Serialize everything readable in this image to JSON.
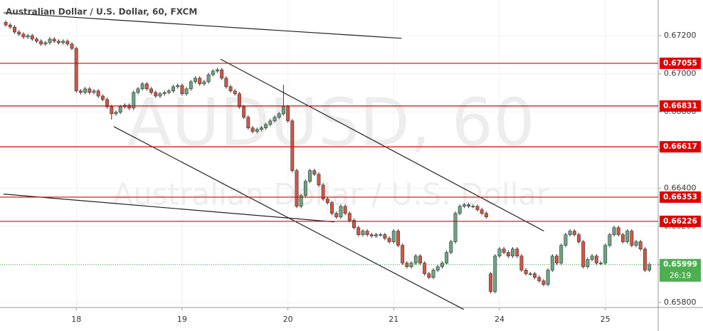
{
  "chart_data": {
    "type": "candlestick",
    "title": "Australian Dollar / U.S. Dollar, 60, FXCM",
    "watermark": "AUDUSD, 60",
    "watermark_subtitle": "Australian Dollar / U.S. Dollar",
    "up_color": "#6ba583",
    "down_color": "#d75442",
    "open": [
      0.6727,
      0.67256,
      0.67245,
      0.67219,
      0.67208,
      0.67193,
      0.672,
      0.67182,
      0.67171,
      0.67156,
      0.67163,
      0.67182,
      0.67171,
      0.67163,
      0.67171,
      0.67156,
      0.67133,
      0.6691,
      0.66902,
      0.66921,
      0.66902,
      0.6691,
      0.66883,
      0.66865,
      0.66827,
      0.6679,
      0.66798,
      0.66827,
      0.66835,
      0.6682,
      0.66902,
      0.66921,
      0.66947,
      0.66921,
      0.66902,
      0.66883,
      0.66895,
      0.66902,
      0.6691,
      0.66932,
      0.66939,
      0.66895,
      0.66921,
      0.66958,
      0.66977,
      0.66947,
      0.66958,
      0.66995,
      0.67014,
      0.67021,
      0.66977,
      0.66932,
      0.6691,
      0.66895,
      0.66827,
      0.66772,
      0.66716,
      0.66697,
      0.66708,
      0.66716,
      0.66734,
      0.66753,
      0.66772,
      0.6679,
      0.66827,
      0.66753,
      0.66492,
      0.66305,
      0.66361,
      0.66436,
      0.66492,
      0.66473,
      0.66417,
      0.66343,
      0.66324,
      0.66268,
      0.66249,
      0.66305,
      0.66268,
      0.66231,
      0.66193,
      0.66156,
      0.66175,
      0.66156,
      0.66149,
      0.66156,
      0.66156,
      0.66137,
      0.66119,
      0.66175,
      0.661,
      0.66007,
      0.65988,
      0.66007,
      0.66044,
      0.66007,
      0.65951,
      0.65932,
      0.6597,
      0.65988,
      0.66007,
      0.66063,
      0.66119,
      0.66268,
      0.66305,
      0.66313,
      0.66305,
      0.66305,
      0.66287,
      0.66268,
      0.65951,
      0.65858,
      0.66044,
      0.66081,
      0.66063,
      0.66044,
      0.66081,
      0.66044,
      0.6597,
      0.65951,
      0.65951,
      0.65932,
      0.65914,
      0.65895,
      0.6597,
      0.66044,
      0.66007,
      0.661,
      0.66156,
      0.66175,
      0.66156,
      0.66119,
      0.65988,
      0.66026,
      0.66044,
      0.66007,
      0.66007,
      0.661,
      0.66156,
      0.66193,
      0.66156,
      0.66119,
      0.66175,
      0.661,
      0.66119,
      0.66081,
      0.6597
    ],
    "high": [
      0.6728,
      0.67266,
      0.67255,
      0.67229,
      0.67218,
      0.6721,
      0.6721,
      0.67192,
      0.67181,
      0.67173,
      0.67192,
      0.67192,
      0.67181,
      0.67181,
      0.67181,
      0.67166,
      0.67143,
      0.6692,
      0.66931,
      0.66931,
      0.6692,
      0.6692,
      0.66893,
      0.66875,
      0.66837,
      0.66808,
      0.66837,
      0.66845,
      0.66845,
      0.66912,
      0.66931,
      0.66957,
      0.66957,
      0.66931,
      0.66912,
      0.66905,
      0.66912,
      0.6692,
      0.66942,
      0.66949,
      0.66949,
      0.66931,
      0.66968,
      0.66987,
      0.66987,
      0.66968,
      0.67005,
      0.67024,
      0.67031,
      0.67031,
      0.66987,
      0.66942,
      0.6692,
      0.66905,
      0.66837,
      0.66782,
      0.66726,
      0.66718,
      0.66726,
      0.66744,
      0.66763,
      0.66782,
      0.668,
      0.66942,
      0.66837,
      0.66763,
      0.66502,
      0.66371,
      0.66446,
      0.66502,
      0.66502,
      0.66483,
      0.66427,
      0.66353,
      0.66334,
      0.66278,
      0.66315,
      0.66315,
      0.66278,
      0.66241,
      0.66203,
      0.66185,
      0.66185,
      0.66166,
      0.66166,
      0.66166,
      0.66166,
      0.66147,
      0.66185,
      0.66185,
      0.6611,
      0.66017,
      0.66017,
      0.66054,
      0.66054,
      0.66017,
      0.65961,
      0.6598,
      0.65998,
      0.66017,
      0.66073,
      0.66129,
      0.66278,
      0.66315,
      0.66323,
      0.66323,
      0.66315,
      0.66315,
      0.66297,
      0.66278,
      0.65961,
      0.66054,
      0.66091,
      0.66091,
      0.66073,
      0.66091,
      0.66091,
      0.66054,
      0.6598,
      0.65961,
      0.65961,
      0.65942,
      0.65924,
      0.6598,
      0.66054,
      0.66054,
      0.6611,
      0.66166,
      0.66185,
      0.66185,
      0.66166,
      0.66129,
      0.66036,
      0.66054,
      0.66054,
      0.66017,
      0.6611,
      0.66166,
      0.66203,
      0.66203,
      0.66166,
      0.66185,
      0.66185,
      0.66129,
      0.66129,
      0.66091,
      0.66009
    ],
    "low": [
      0.67246,
      0.67235,
      0.67209,
      0.67198,
      0.67183,
      0.67183,
      0.67172,
      0.67161,
      0.67146,
      0.67146,
      0.67153,
      0.67161,
      0.67153,
      0.67153,
      0.67146,
      0.67123,
      0.669,
      0.66892,
      0.66892,
      0.66892,
      0.66892,
      0.66873,
      0.66855,
      0.66817,
      0.6676,
      0.6678,
      0.66788,
      0.66817,
      0.6681,
      0.6681,
      0.66892,
      0.66911,
      0.66911,
      0.66892,
      0.66873,
      0.66873,
      0.66885,
      0.66892,
      0.669,
      0.66922,
      0.66885,
      0.66885,
      0.66911,
      0.66948,
      0.66937,
      0.66937,
      0.66948,
      0.66985,
      0.67004,
      0.66967,
      0.66922,
      0.669,
      0.66885,
      0.66817,
      0.66762,
      0.66706,
      0.66687,
      0.66687,
      0.66698,
      0.66706,
      0.66724,
      0.66743,
      0.66762,
      0.6678,
      0.66743,
      0.66482,
      0.66295,
      0.66295,
      0.66351,
      0.66426,
      0.66463,
      0.66407,
      0.66333,
      0.66314,
      0.66258,
      0.66239,
      0.66239,
      0.66258,
      0.66221,
      0.66183,
      0.66146,
      0.66146,
      0.66146,
      0.66139,
      0.66139,
      0.66146,
      0.66127,
      0.66109,
      0.66109,
      0.6609,
      0.65997,
      0.65978,
      0.65978,
      0.65997,
      0.65997,
      0.65941,
      0.65922,
      0.65922,
      0.6596,
      0.65978,
      0.65997,
      0.66053,
      0.66109,
      0.66258,
      0.66295,
      0.66295,
      0.66295,
      0.66277,
      0.66258,
      0.66239,
      0.65848,
      0.65848,
      0.66034,
      0.66053,
      0.66034,
      0.66034,
      0.66034,
      0.6596,
      0.65941,
      0.65941,
      0.65922,
      0.65904,
      0.65885,
      0.65885,
      0.6596,
      0.65997,
      0.65997,
      0.6609,
      0.66146,
      0.66146,
      0.66109,
      0.65978,
      0.65978,
      0.66016,
      0.65997,
      0.65997,
      0.65997,
      0.6609,
      0.66146,
      0.66146,
      0.66109,
      0.66109,
      0.6609,
      0.6609,
      0.66071,
      0.6596,
      0.6596
    ],
    "close": [
      0.67256,
      0.67245,
      0.67219,
      0.67208,
      0.67193,
      0.672,
      0.67182,
      0.67171,
      0.67156,
      0.67163,
      0.67182,
      0.67171,
      0.67163,
      0.67171,
      0.67156,
      0.67133,
      0.6691,
      0.66902,
      0.66921,
      0.66902,
      0.6691,
      0.66883,
      0.66865,
      0.66827,
      0.6679,
      0.66798,
      0.66827,
      0.66835,
      0.6682,
      0.66902,
      0.66921,
      0.66947,
      0.66921,
      0.66902,
      0.66883,
      0.66895,
      0.66902,
      0.6691,
      0.66932,
      0.66939,
      0.66895,
      0.66921,
      0.66958,
      0.66977,
      0.66947,
      0.66958,
      0.66995,
      0.67014,
      0.67021,
      0.66977,
      0.66932,
      0.6691,
      0.66895,
      0.66827,
      0.66772,
      0.66716,
      0.66697,
      0.66708,
      0.66716,
      0.66734,
      0.66753,
      0.66772,
      0.6679,
      0.66827,
      0.66753,
      0.66492,
      0.66305,
      0.66361,
      0.66436,
      0.66492,
      0.66473,
      0.66417,
      0.66343,
      0.66324,
      0.66268,
      0.66249,
      0.66305,
      0.66268,
      0.66231,
      0.66193,
      0.66156,
      0.66175,
      0.66156,
      0.66149,
      0.66156,
      0.66156,
      0.66137,
      0.66119,
      0.66175,
      0.661,
      0.66007,
      0.65988,
      0.66007,
      0.66044,
      0.66007,
      0.65951,
      0.65932,
      0.6597,
      0.65988,
      0.66007,
      0.66063,
      0.66119,
      0.66268,
      0.66305,
      0.66313,
      0.66305,
      0.66305,
      0.66287,
      0.66268,
      0.66249,
      0.65858,
      0.66044,
      0.66081,
      0.66063,
      0.66044,
      0.66081,
      0.66044,
      0.6597,
      0.65951,
      0.65951,
      0.65932,
      0.65914,
      0.65895,
      0.6597,
      0.66044,
      0.66007,
      0.661,
      0.66156,
      0.66175,
      0.66156,
      0.66119,
      0.65988,
      0.66026,
      0.66044,
      0.66007,
      0.66007,
      0.661,
      0.66156,
      0.66193,
      0.66156,
      0.66119,
      0.66175,
      0.661,
      0.66119,
      0.66081,
      0.6597,
      0.65999
    ],
    "xlim": [
      -0.5,
      148
    ],
    "xticks": [
      {
        "value": 16,
        "label": "18"
      },
      {
        "value": 40,
        "label": "19"
      },
      {
        "value": 64,
        "label": "20"
      },
      {
        "value": 88,
        "label": "21"
      },
      {
        "value": 112,
        "label": "24"
      },
      {
        "value": 136,
        "label": "25"
      }
    ],
    "ylim": [
      0.65774,
      0.67387
    ],
    "yticks": [
      {
        "value": 0.672,
        "label": "0.67200"
      },
      {
        "value": 0.67,
        "label": "0.67000"
      },
      {
        "value": 0.668,
        "label": "0.66800"
      },
      {
        "value": 0.666,
        "label": "0.66600"
      },
      {
        "value": 0.664,
        "label": "0.66400"
      },
      {
        "value": 0.662,
        "label": "0.66200"
      },
      {
        "value": 0.66,
        "label": "0.66000"
      },
      {
        "value": 0.658,
        "label": "0.65800"
      }
    ],
    "grid": true,
    "levels": [
      0.67055,
      0.66831,
      0.66617,
      0.66353,
      0.66226
    ],
    "level_color": "#e00000",
    "last_price": 0.65999,
    "last_price_color": "#4caf50",
    "countdown": "26:19",
    "trend_lines": [
      {
        "x": [
          -0.5,
          89.8
        ],
        "y": [
          0.6732,
          0.67186
        ]
      },
      {
        "x": [
          48.7,
          122.1
        ],
        "y": [
          0.67077,
          0.66175
        ]
      },
      {
        "x": [
          24.5,
          103.9
        ],
        "y": [
          0.66723,
          0.65764
        ]
      },
      {
        "x": [
          -0.5,
          74.5
        ],
        "y": [
          0.66369,
          0.66223
        ]
      }
    ]
  }
}
